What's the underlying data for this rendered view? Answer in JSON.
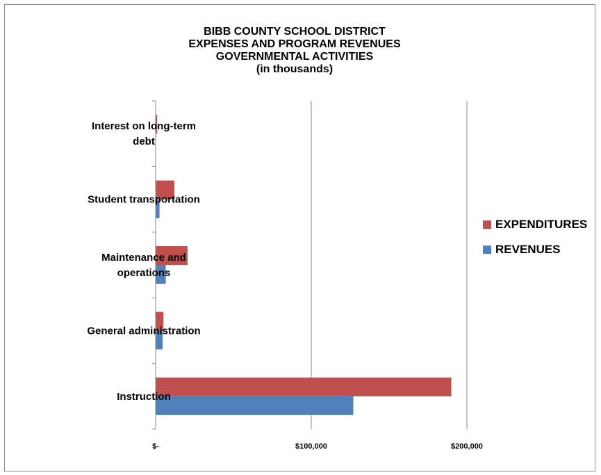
{
  "chart_data": {
    "type": "bar",
    "orientation": "horizontal",
    "title_lines": [
      "BIBB COUNTY SCHOOL DISTRICT",
      "EXPENSES AND PROGRAM REVENUES",
      "GOVERNMENTAL ACTIVITIES",
      "(in thousands)"
    ],
    "categories": [
      "Interest on long-term debt",
      "Student transportation",
      "Maintenance and operations",
      "General administration",
      "Instruction"
    ],
    "category_lines": [
      [
        "Interest on long-term",
        "debt"
      ],
      [
        "Student transportation"
      ],
      [
        "Maintenance and",
        "operations"
      ],
      [
        "General administration"
      ],
      [
        "Instruction"
      ]
    ],
    "series": [
      {
        "name": "EXPENDITURES",
        "color": "#c0504d",
        "values": [
          1000,
          12000,
          20500,
          5000,
          190000
        ]
      },
      {
        "name": "REVENUES",
        "color": "#4f81bd",
        "values": [
          0,
          2500,
          6500,
          4500,
          127000
        ]
      }
    ],
    "xlim": [
      0,
      200000
    ],
    "x_ticks": [
      0,
      100000,
      200000
    ],
    "x_tick_labels": [
      "$-",
      "$100,000",
      "$200,000"
    ],
    "grid": "vertical",
    "legend_position": "right"
  }
}
